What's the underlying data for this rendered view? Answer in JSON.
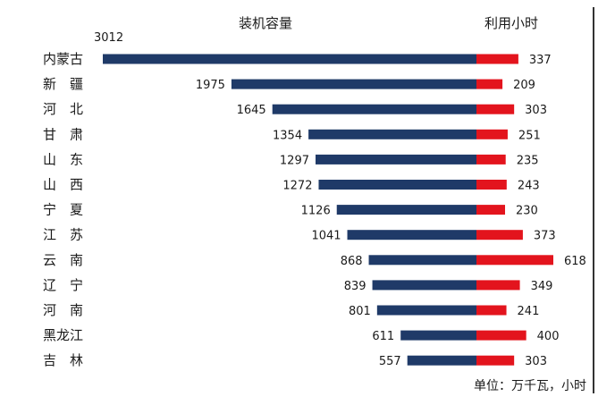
{
  "chart_data": {
    "type": "bar",
    "headers": {
      "left": "装机容量",
      "right": "利用小时"
    },
    "unit_note": "单位：万千瓦，小时",
    "categories": [
      "内蒙古",
      "新　疆",
      "河　北",
      "甘　肃",
      "山　东",
      "山　西",
      "宁　夏",
      "江　苏",
      "云　南",
      "辽　宁",
      "河　南",
      "黑龙江",
      "吉　林"
    ],
    "series": [
      {
        "values": [
          3012,
          1975,
          1645,
          1354,
          1297,
          1272,
          1126,
          1041,
          868,
          839,
          801,
          611,
          557
        ],
        "color": "#1f3a68"
      },
      {
        "values": [
          337,
          209,
          303,
          251,
          235,
          243,
          230,
          373,
          618,
          349,
          241,
          400,
          303
        ],
        "color": "#e3141d"
      }
    ]
  }
}
